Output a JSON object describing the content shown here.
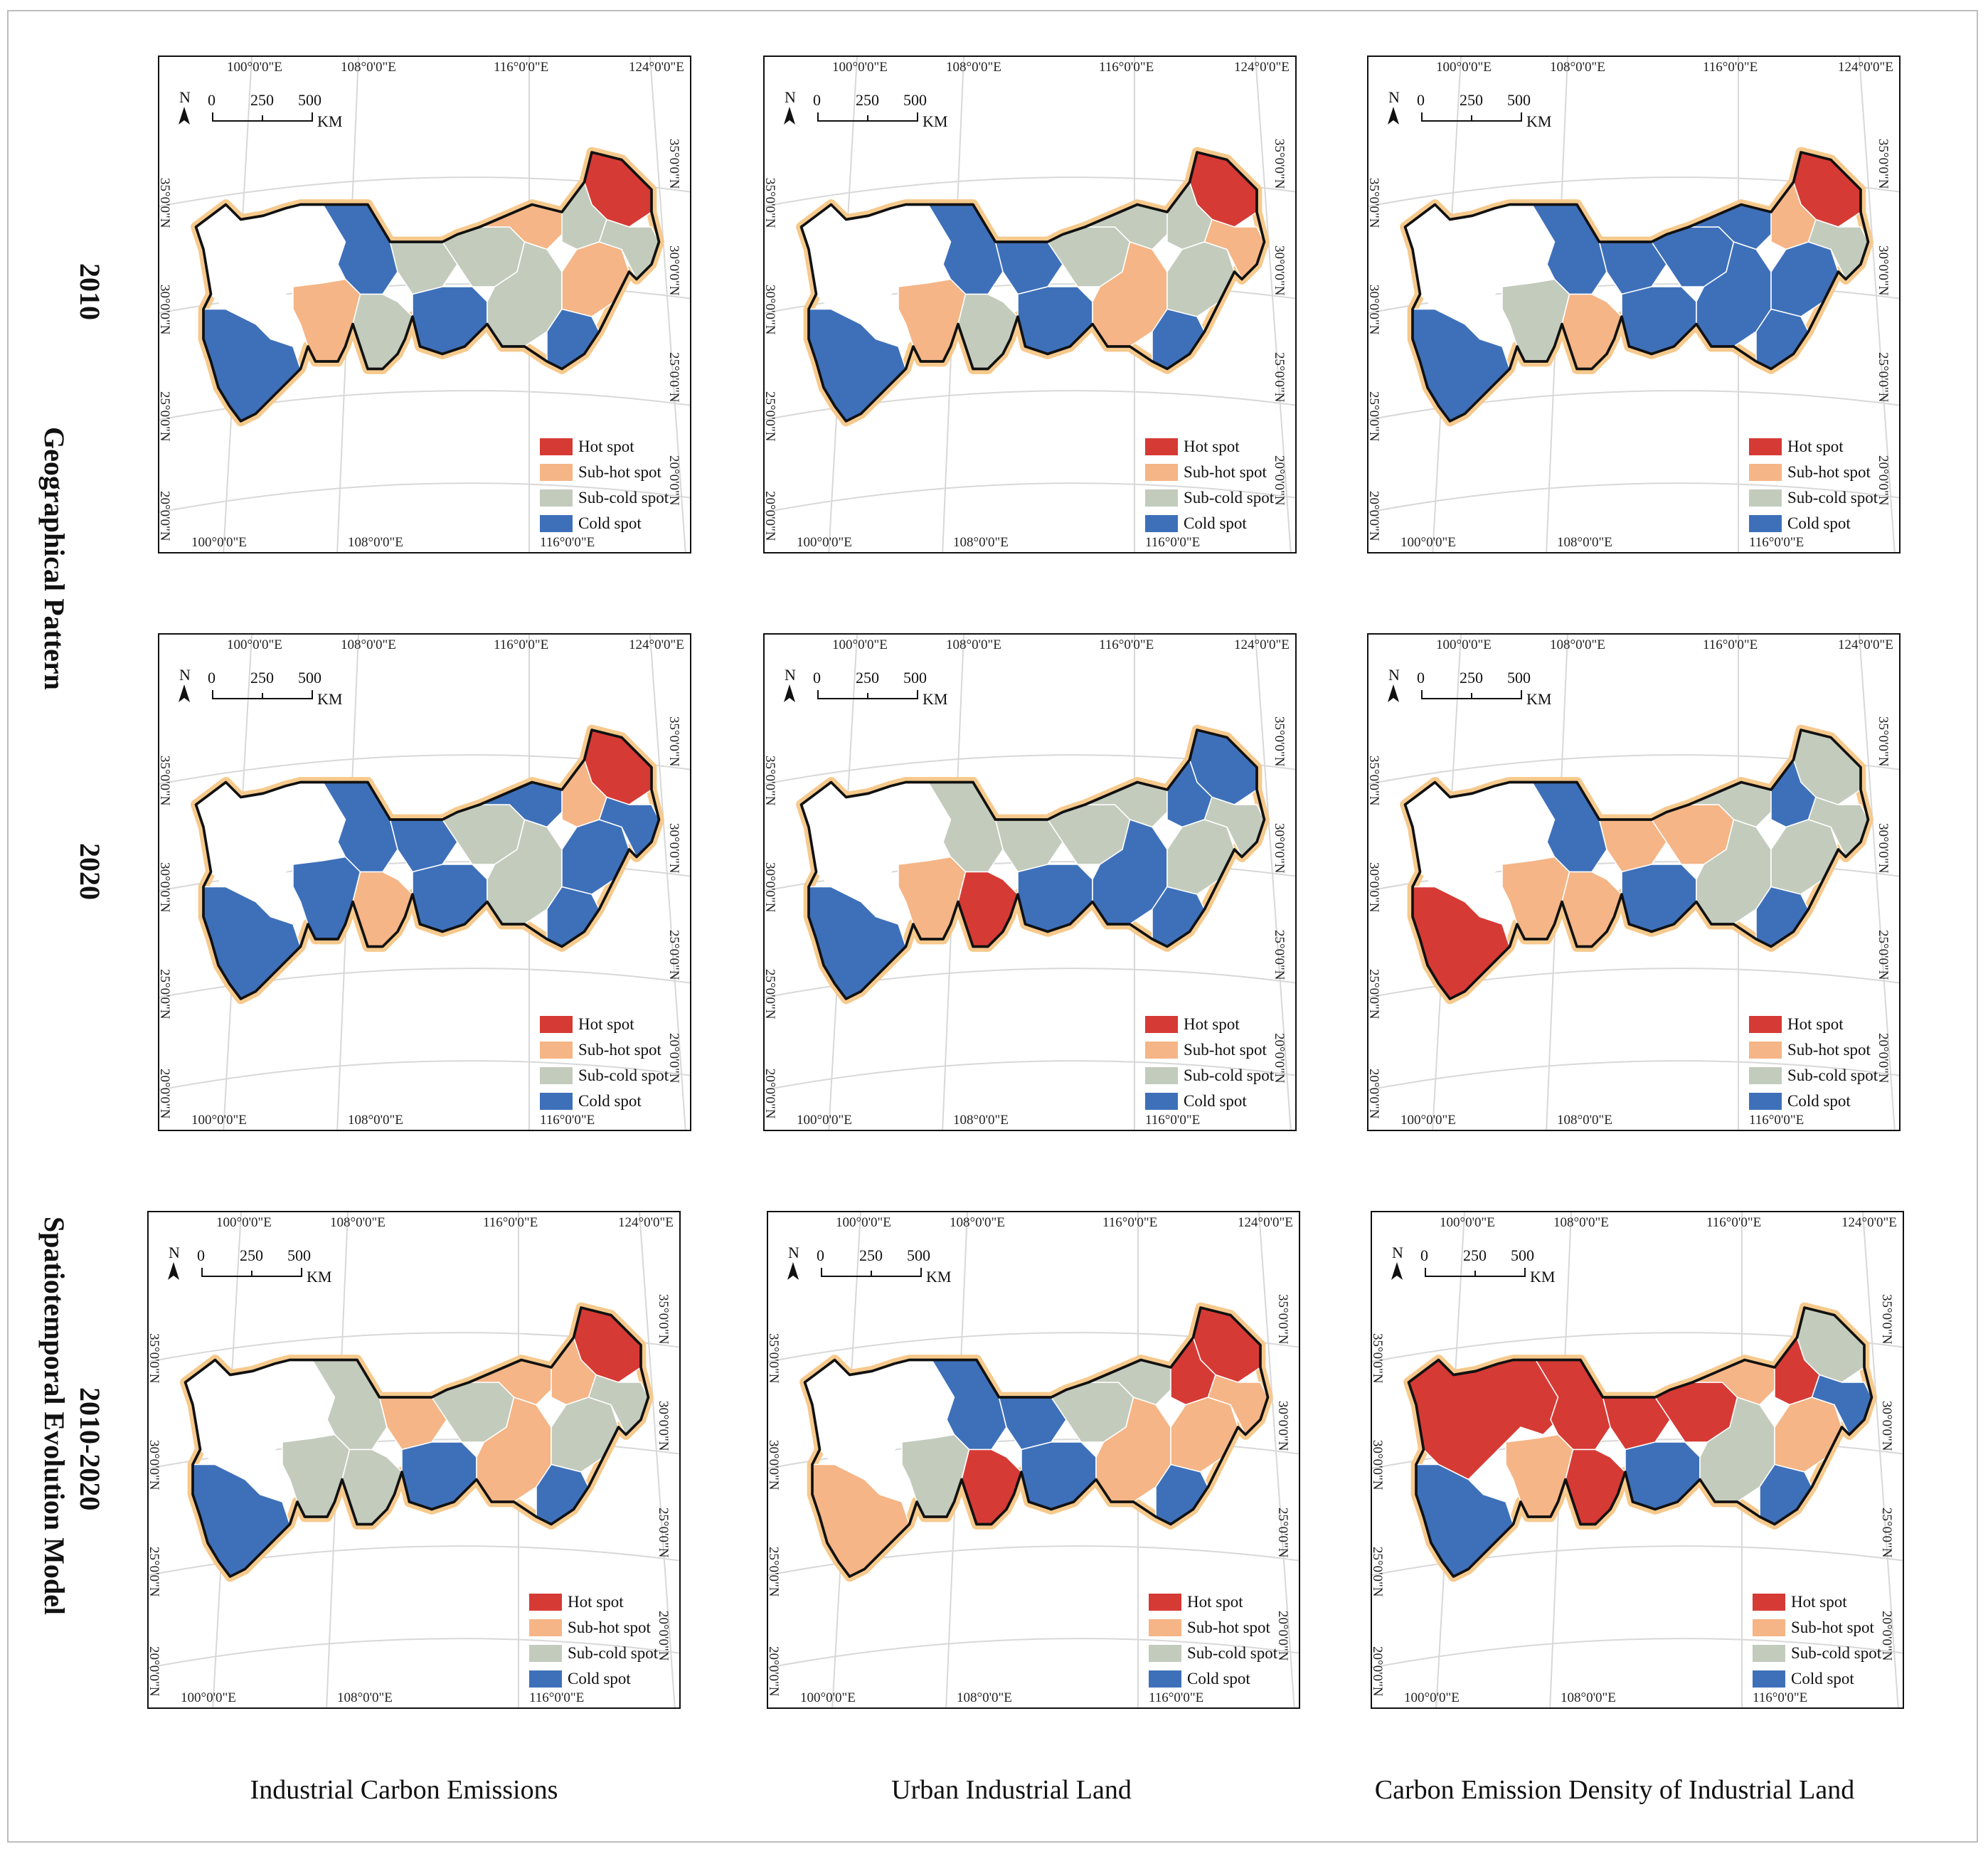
{
  "row_labels": {
    "year_2010": "2010",
    "year_2020": "2020",
    "geo_pattern": "Geographical Pattern",
    "evolution": "2010-2020",
    "evolution_model": "Spatiotemporal Evolution Model"
  },
  "column_labels": [
    "Industrial Carbon Emissions",
    "Urban Industrial Land",
    "Carbon Emission Density of Industrial Land"
  ],
  "legend": [
    {
      "label": "Hot spot",
      "color": "#d63a35"
    },
    {
      "label": "Sub-hot spot",
      "color": "#f5b586"
    },
    {
      "label": "Sub-cold spot",
      "color": "#c3cbbd"
    },
    {
      "label": "Cold spot",
      "color": "#3e70ba"
    }
  ],
  "scale_bar": {
    "north": "N",
    "zero": "0",
    "mid": "250",
    "max": "500",
    "unit": "KM"
  },
  "lon_top": [
    "100°0'0\"E",
    "108°0'0\"E",
    "116°0'0\"E",
    "124°0'0\"E"
  ],
  "lon_bottom": [
    "100°0'0\"E",
    "108°0'0\"E",
    "116°0'0\"E"
  ],
  "lat_left": [
    "35°0'0\"N",
    "30°0'0\"N",
    "25°0'0\"N",
    "20°0'0\"N"
  ],
  "lat_right": [
    "35°0'0\"N",
    "30°0'0\"N",
    "25°0'0\"N",
    "20°0'0\"N"
  ],
  "maps": [
    {
      "name": "ice-2010",
      "regions": [
        "white",
        "cold",
        "sub-hot",
        "cold",
        "sub-cold",
        "sub-cold",
        "sub-cold",
        "cold",
        "sub-hot",
        "sub-cold",
        "hot",
        "sub-cold",
        "sub-hot",
        "cold",
        "sub-cold"
      ]
    },
    {
      "name": "uil-2010",
      "regions": [
        "white",
        "cold",
        "sub-hot",
        "cold",
        "sub-cold",
        "cold",
        "sub-cold",
        "cold",
        "sub-cold",
        "sub-hot",
        "hot",
        "sub-cold",
        "sub-cold",
        "cold",
        "sub-hot"
      ]
    },
    {
      "name": "ced-2010",
      "regions": [
        "white",
        "cold",
        "sub-cold",
        "cold",
        "sub-hot",
        "cold",
        "cold",
        "cold",
        "cold",
        "cold",
        "hot",
        "sub-hot",
        "cold",
        "cold",
        "sub-cold"
      ]
    },
    {
      "name": "ice-2020",
      "regions": [
        "white",
        "cold",
        "cold",
        "cold",
        "sub-hot",
        "cold",
        "sub-cold",
        "cold",
        "cold",
        "sub-cold",
        "hot",
        "sub-hot",
        "cold",
        "cold",
        "cold"
      ]
    },
    {
      "name": "uil-2020",
      "regions": [
        "white",
        "sub-cold",
        "sub-hot",
        "cold",
        "hot",
        "sub-cold",
        "sub-cold",
        "cold",
        "sub-cold",
        "cold",
        "cold",
        "cold",
        "sub-cold",
        "cold",
        "sub-cold"
      ]
    },
    {
      "name": "ced-2020",
      "regions": [
        "white",
        "cold",
        "sub-hot",
        "hot",
        "sub-hot",
        "sub-hot",
        "sub-hot",
        "cold",
        "sub-cold",
        "sub-cold",
        "sub-cold",
        "cold",
        "sub-cold",
        "cold",
        "sub-cold"
      ]
    },
    {
      "name": "ice-evo",
      "regions": [
        "white",
        "sub-cold",
        "sub-cold",
        "cold",
        "sub-cold",
        "sub-hot",
        "sub-cold",
        "cold",
        "sub-hot",
        "sub-hot",
        "hot",
        "sub-hot",
        "sub-cold",
        "cold",
        "sub-cold"
      ]
    },
    {
      "name": "uil-evo",
      "regions": [
        "white",
        "cold",
        "sub-cold",
        "sub-hot",
        "hot",
        "cold",
        "sub-cold",
        "cold",
        "sub-cold",
        "sub-hot",
        "hot",
        "hot",
        "sub-hot",
        "cold",
        "sub-hot"
      ]
    },
    {
      "name": "ced-evo",
      "regions": [
        "hot",
        "hot",
        "sub-hot",
        "cold",
        "hot",
        "hot",
        "hot",
        "cold",
        "sub-hot",
        "sub-cold",
        "sub-cold",
        "hot",
        "sub-hot",
        "cold",
        "cold"
      ]
    }
  ]
}
